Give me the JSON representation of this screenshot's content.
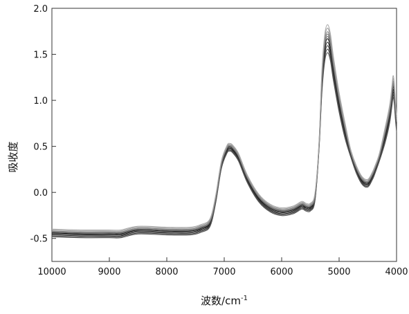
{
  "chart_data": {
    "type": "line",
    "xlabel": "波数/cm-1",
    "xlabel_main": "波数/cm",
    "xlabel_sup": "-1",
    "ylabel": "吸收度",
    "xlim": [
      10000,
      4000
    ],
    "x_reversed": true,
    "ylim": [
      -0.75,
      2.0
    ],
    "grid": false,
    "legend": "none",
    "x_ticks": [
      "10000",
      "9000",
      "8000",
      "7000",
      "6000",
      "5000",
      "4000"
    ],
    "y_ticks": [
      "2.0",
      "1.5",
      "1.0",
      "0.5",
      "0.0",
      "-0.5"
    ],
    "x": [
      10000,
      9500,
      9000,
      8800,
      8500,
      8000,
      7600,
      7400,
      7250,
      7150,
      7050,
      6950,
      6900,
      6850,
      6750,
      6600,
      6400,
      6200,
      6000,
      5800,
      5650,
      5580,
      5500,
      5420,
      5350,
      5300,
      5250,
      5200,
      5150,
      5100,
      5000,
      4900,
      4800,
      4700,
      4600,
      4500,
      4420,
      4380,
      4300,
      4200,
      4120,
      4080,
      4060,
      4040,
      4020,
      4000
    ],
    "base_spectrum": [
      -0.44,
      -0.45,
      -0.45,
      -0.45,
      -0.41,
      -0.42,
      -0.42,
      -0.39,
      -0.33,
      -0.08,
      0.3,
      0.47,
      0.49,
      0.47,
      0.38,
      0.15,
      -0.06,
      -0.17,
      -0.21,
      -0.19,
      -0.14,
      -0.16,
      -0.16,
      -0.05,
      0.5,
      1.2,
      1.57,
      1.67,
      1.57,
      1.35,
      0.98,
      0.68,
      0.43,
      0.25,
      0.13,
      0.1,
      0.18,
      0.24,
      0.38,
      0.62,
      0.85,
      1.05,
      1.15,
      1.08,
      0.9,
      0.75
    ],
    "series_offsets": [
      0.0,
      -0.03,
      -0.06,
      -0.09,
      -0.12,
      0.02,
      0.04,
      0.06,
      0.09,
      0.12
    ],
    "series_colors": [
      "#111111",
      "#222222",
      "#333333",
      "#444444",
      "#555555",
      "#666666",
      "#777777",
      "#888888",
      "#999999",
      "#aaaaaa"
    ]
  }
}
